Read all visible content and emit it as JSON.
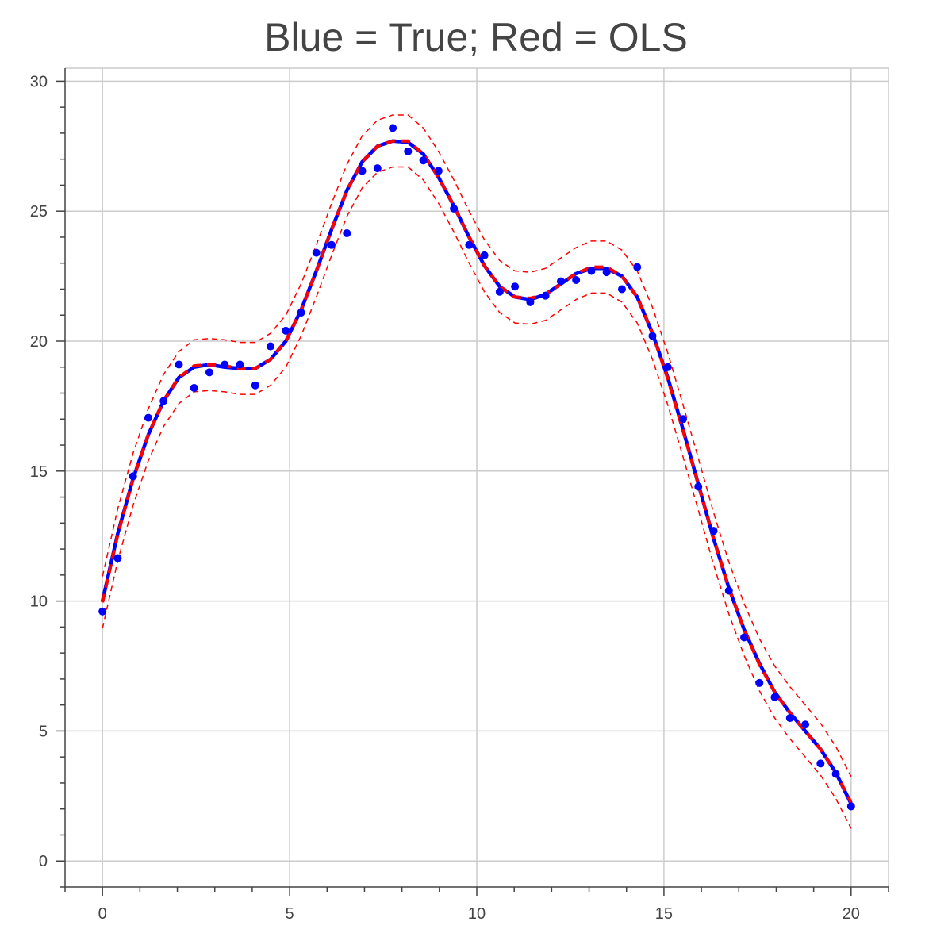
{
  "chart_data": {
    "type": "line",
    "title": "Blue = True; Red = OLS",
    "xlabel": "",
    "ylabel": "",
    "xlim": [
      -1,
      21
    ],
    "ylim": [
      -1,
      30.5
    ],
    "x_ticks": [
      0,
      5,
      10,
      15,
      20
    ],
    "y_ticks": [
      0,
      5,
      10,
      15,
      20,
      25,
      30
    ],
    "grid": true,
    "legend": "none",
    "colors": {
      "true": "#0000ff",
      "ols": "#ff0000",
      "points": "#0000ff",
      "grid": "#cccccc",
      "axis": "#444444"
    },
    "series": [
      {
        "style": "line",
        "color": "#0000ff",
        "x": [
          0,
          0.408,
          0.816,
          1.224,
          1.633,
          2.041,
          2.449,
          2.857,
          3.265,
          3.673,
          4.082,
          4.49,
          4.898,
          5.306,
          5.714,
          6.122,
          6.531,
          6.939,
          7.347,
          7.755,
          8.163,
          8.571,
          8.98,
          9.388,
          9.796,
          10.204,
          10.612,
          11.02,
          11.429,
          11.837,
          12.245,
          12.653,
          13.061,
          13.469,
          13.878,
          14.286,
          14.694,
          15.102,
          15.51,
          15.918,
          16.327,
          16.735,
          17.143,
          17.551,
          17.959,
          18.367,
          18.776,
          19.184,
          19.592,
          20
        ],
        "y": [
          10.0,
          12.6,
          14.7,
          16.4,
          17.7,
          18.6,
          19.0,
          19.1,
          19.0,
          18.95,
          18.95,
          19.3,
          20.0,
          21.2,
          22.7,
          24.3,
          25.8,
          26.9,
          27.5,
          27.7,
          27.65,
          27.2,
          26.3,
          25.2,
          24.0,
          22.9,
          22.1,
          21.7,
          21.6,
          21.8,
          22.2,
          22.6,
          22.8,
          22.8,
          22.5,
          21.7,
          20.3,
          18.6,
          16.6,
          14.5,
          12.4,
          10.5,
          8.9,
          7.6,
          6.5,
          5.7,
          5.0,
          4.3,
          3.4,
          2.2
        ]
      },
      {
        "style": "dashed",
        "color": "#ff0000",
        "x": [
          0,
          0.408,
          0.816,
          1.224,
          1.633,
          2.041,
          2.449,
          2.857,
          3.265,
          3.673,
          4.082,
          4.49,
          4.898,
          5.306,
          5.714,
          6.122,
          6.531,
          6.939,
          7.347,
          7.755,
          8.163,
          8.571,
          8.98,
          9.388,
          9.796,
          10.204,
          10.612,
          11.02,
          11.429,
          11.837,
          12.245,
          12.653,
          13.061,
          13.469,
          13.878,
          14.286,
          14.694,
          15.102,
          15.51,
          15.918,
          16.327,
          16.735,
          17.143,
          17.551,
          17.959,
          18.367,
          18.776,
          19.184,
          19.592,
          20
        ],
        "y": [
          9.95,
          12.55,
          14.68,
          16.4,
          17.72,
          18.6,
          19.05,
          19.1,
          19.05,
          18.95,
          18.95,
          19.3,
          20.0,
          21.2,
          22.7,
          24.3,
          25.8,
          26.9,
          27.5,
          27.7,
          27.7,
          27.2,
          26.3,
          25.2,
          24.0,
          22.9,
          22.1,
          21.7,
          21.65,
          21.8,
          22.2,
          22.6,
          22.85,
          22.85,
          22.5,
          21.7,
          20.3,
          18.55,
          16.55,
          14.5,
          12.4,
          10.5,
          8.9,
          7.55,
          6.5,
          5.7,
          5.0,
          4.3,
          3.4,
          2.25
        ]
      },
      {
        "style": "thin-dashed",
        "color": "#ff0000",
        "x": [
          0,
          0.408,
          0.816,
          1.224,
          1.633,
          2.041,
          2.449,
          2.857,
          3.265,
          3.673,
          4.082,
          4.49,
          4.898,
          5.306,
          5.714,
          6.122,
          6.531,
          6.939,
          7.347,
          7.755,
          8.163,
          8.571,
          8.98,
          9.388,
          9.796,
          10.204,
          10.612,
          11.02,
          11.429,
          11.837,
          12.245,
          12.653,
          13.061,
          13.469,
          13.878,
          14.286,
          14.694,
          15.102,
          15.51,
          15.918,
          16.327,
          16.735,
          17.143,
          17.551,
          17.959,
          18.367,
          18.776,
          19.184,
          19.592,
          20
        ],
        "y": [
          10.95,
          13.55,
          15.68,
          17.4,
          18.72,
          19.6,
          20.05,
          20.1,
          20.05,
          19.95,
          19.95,
          20.3,
          21.0,
          22.2,
          23.7,
          25.3,
          26.8,
          27.9,
          28.5,
          28.7,
          28.7,
          28.2,
          27.3,
          26.2,
          25.0,
          23.9,
          23.1,
          22.7,
          22.65,
          22.8,
          23.2,
          23.6,
          23.85,
          23.85,
          23.5,
          22.7,
          21.3,
          19.55,
          17.55,
          15.5,
          13.4,
          11.5,
          9.9,
          8.55,
          7.5,
          6.7,
          6.0,
          5.3,
          4.4,
          3.25
        ]
      },
      {
        "style": "thin-dashed",
        "color": "#ff0000",
        "x": [
          0,
          0.408,
          0.816,
          1.224,
          1.633,
          2.041,
          2.449,
          2.857,
          3.265,
          3.673,
          4.082,
          4.49,
          4.898,
          5.306,
          5.714,
          6.122,
          6.531,
          6.939,
          7.347,
          7.755,
          8.163,
          8.571,
          8.98,
          9.388,
          9.796,
          10.204,
          10.612,
          11.02,
          11.429,
          11.837,
          12.245,
          12.653,
          13.061,
          13.469,
          13.878,
          14.286,
          14.694,
          15.102,
          15.51,
          15.918,
          16.327,
          16.735,
          17.143,
          17.551,
          17.959,
          18.367,
          18.776,
          19.184,
          19.592,
          20
        ],
        "y": [
          8.95,
          11.55,
          13.68,
          15.4,
          16.72,
          17.6,
          18.05,
          18.1,
          18.05,
          17.95,
          17.95,
          18.3,
          19.0,
          20.2,
          21.7,
          23.3,
          24.8,
          25.9,
          26.5,
          26.7,
          26.7,
          26.2,
          25.3,
          24.2,
          23.0,
          21.9,
          21.1,
          20.7,
          20.65,
          20.8,
          21.2,
          21.6,
          21.85,
          21.85,
          21.5,
          20.7,
          19.3,
          17.55,
          15.55,
          13.5,
          11.4,
          9.5,
          7.9,
          6.55,
          5.5,
          4.7,
          4.0,
          3.3,
          2.4,
          1.25
        ]
      },
      {
        "style": "scatter",
        "color": "#0000ff",
        "x": [
          0,
          0.408,
          0.816,
          1.224,
          1.633,
          2.041,
          2.449,
          2.857,
          3.265,
          3.673,
          4.082,
          4.49,
          4.898,
          5.306,
          5.714,
          6.122,
          6.531,
          6.939,
          7.347,
          7.755,
          8.163,
          8.571,
          8.98,
          9.388,
          9.796,
          10.204,
          10.612,
          11.02,
          11.429,
          11.837,
          12.245,
          12.653,
          13.061,
          13.469,
          13.878,
          14.286,
          14.694,
          15.102,
          15.51,
          15.918,
          16.327,
          16.735,
          17.143,
          17.551,
          17.959,
          18.367,
          18.776,
          19.184,
          19.592,
          20
        ],
        "y": [
          9.6,
          11.65,
          14.8,
          17.05,
          17.7,
          19.1,
          18.2,
          18.8,
          19.1,
          19.1,
          18.3,
          19.8,
          20.4,
          21.1,
          23.4,
          23.7,
          24.15,
          26.55,
          26.65,
          28.2,
          27.3,
          26.95,
          26.55,
          25.1,
          23.7,
          23.3,
          21.9,
          22.1,
          21.5,
          21.75,
          22.3,
          22.35,
          22.7,
          22.65,
          22.0,
          22.85,
          20.2,
          19.0,
          17.0,
          14.4,
          12.7,
          10.4,
          8.6,
          6.85,
          6.3,
          5.5,
          5.25,
          3.75,
          3.35,
          2.1
        ]
      }
    ]
  }
}
